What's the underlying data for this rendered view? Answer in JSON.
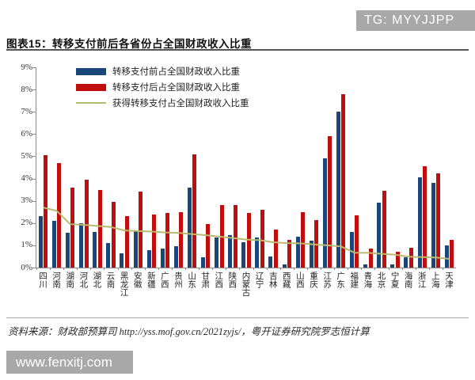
{
  "tg_tag": "TG: MYYJJPP",
  "title": "图表15：转移支付前后各省份占全国财政收入比重",
  "footer_source": "资料来源：财政部预算司 http://yss.mof.gov.cn/2021zyjs/，粤开证券研究院罗志恒计算",
  "watermark": "www.fenxitj.com",
  "colors": {
    "bar_before": "#1b4679",
    "bar_after": "#c00d0d",
    "transfer_line": "#b8bb6e",
    "tag_background": "#a8a8a8",
    "axis": "#8a8a8a"
  },
  "chart_data": {
    "type": "bar",
    "title": "转移支付前后各省份占全国财政收入比重",
    "categories": [
      "四川",
      "河南",
      "湖南",
      "河北",
      "湖北",
      "云南",
      "黑龙江",
      "安徽",
      "新疆",
      "广西",
      "贵州",
      "山东",
      "甘肃",
      "江西",
      "陕西",
      "内蒙古",
      "辽宁",
      "吉林",
      "西藏",
      "山西",
      "重庆",
      "江苏",
      "广东",
      "福建",
      "青海",
      "北京",
      "宁夏",
      "海南",
      "浙江",
      "上海",
      "天津"
    ],
    "series": [
      {
        "name": "转移支付前占全国财政收入比重",
        "type": "bar",
        "color": "#1b4679",
        "values": [
          2.3,
          2.1,
          1.55,
          2.0,
          1.6,
          1.1,
          0.65,
          1.65,
          0.8,
          0.85,
          0.95,
          3.6,
          0.45,
          1.35,
          1.45,
          1.15,
          1.35,
          0.5,
          0.15,
          1.4,
          1.2,
          4.9,
          7.0,
          1.6,
          0.15,
          2.9,
          0.15,
          0.45,
          4.05,
          3.8,
          1.0
        ]
      },
      {
        "name": "转移支付后占全国财政收入比重",
        "type": "bar",
        "color": "#c00d0d",
        "values": [
          5.05,
          4.7,
          3.6,
          3.95,
          3.5,
          2.95,
          2.3,
          3.4,
          2.4,
          2.45,
          2.5,
          5.1,
          1.95,
          2.8,
          2.8,
          2.45,
          2.6,
          1.7,
          1.25,
          2.5,
          2.15,
          5.9,
          7.8,
          2.35,
          0.85,
          3.45,
          0.7,
          0.9,
          4.55,
          4.25,
          1.25
        ]
      },
      {
        "name": "获得转移支付占全国财政收入比重",
        "type": "line",
        "color": "#b8bb6e",
        "values": [
          2.7,
          2.55,
          1.95,
          1.92,
          1.87,
          1.82,
          1.67,
          1.64,
          1.62,
          1.58,
          1.56,
          1.5,
          1.46,
          1.39,
          1.33,
          1.26,
          1.23,
          1.14,
          1.1,
          1.09,
          1.04,
          1.0,
          0.95,
          0.67,
          0.66,
          0.62,
          0.58,
          0.49,
          0.47,
          0.45,
          0.39
        ]
      }
    ],
    "ylabel": "",
    "xlabel": "",
    "ylim": [
      0,
      9
    ],
    "y_ticks": [
      "9%",
      "8%",
      "7%",
      "6%",
      "5%",
      "4%",
      "3%",
      "2%",
      "1%",
      "0%"
    ],
    "grid": false,
    "legend_position": "top-left-inside"
  }
}
